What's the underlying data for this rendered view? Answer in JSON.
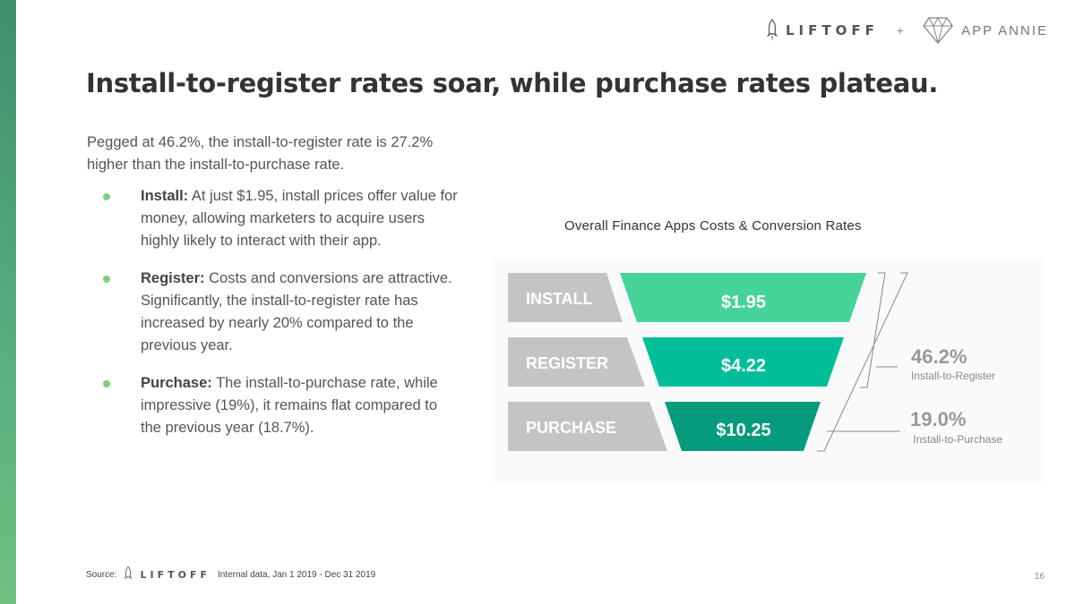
{
  "colors": {
    "accent_green": "#6ccc7a",
    "install": "#46d39a",
    "register": "#00bf98",
    "purchase": "#049c7d",
    "label_grey": "#c4c4c4"
  },
  "brand": {
    "liftoff": "LIFTOFF",
    "plus": "+",
    "annie": "APP ANNIE"
  },
  "title": "Install-to-register rates soar, while purchase rates plateau.",
  "intro": "Pegged at 46.2%, the install-to-register rate is 27.2% higher than the install-to-purchase rate.",
  "bullets": [
    {
      "label": "Install:",
      "text": "At just $1.95, install prices offer value for money, allowing marketers to acquire users highly likely to interact with their app."
    },
    {
      "label": "Register:",
      "text": "Costs and conversions are attractive. Significantly, the install-to-register rate has increased by nearly 20% compared to the previous year."
    },
    {
      "label": "Purchase:",
      "text": "The install-to-purchase rate, while impressive (19%), it remains flat compared to the previous year (18.7%)."
    }
  ],
  "chart_data": {
    "type": "funnel",
    "title": "Overall Finance Apps Costs & Conversion Rates",
    "categories": [
      "INSTALL",
      "REGISTER",
      "PURCHASE"
    ],
    "values": [
      1.95,
      4.22,
      10.25
    ],
    "value_labels": [
      "$1.95",
      "$4.22",
      "$10.25"
    ],
    "rates": [
      {
        "value": "46.2%",
        "label": "Install-to-Register"
      },
      {
        "value": "19.0%",
        "label": "Install-to-Purchase"
      }
    ]
  },
  "source": {
    "label": "Source:",
    "logo": "LIFTOFF",
    "text": "Internal data, Jan 1 2019 - Dec 31 2019"
  },
  "page_number": "16"
}
